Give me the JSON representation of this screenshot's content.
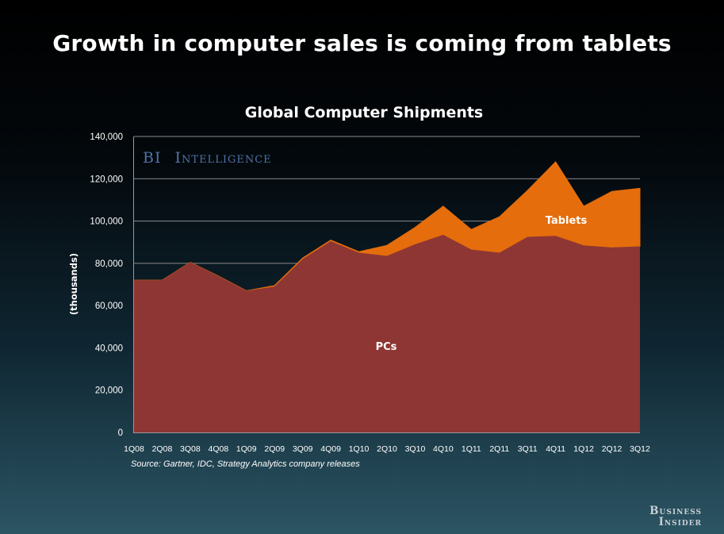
{
  "slide": {
    "title": "Growth in computer sales is coming from tablets",
    "watermark_bi": "BI",
    "watermark_rest": "Intelligence",
    "brand_line1": "Business",
    "brand_line2": "Insider"
  },
  "colors": {
    "pcs": "#8e3634",
    "tablets": "#e56d0c",
    "gridline": "#8a8a8a",
    "watermark": "#4f74a6"
  },
  "chart_data": {
    "type": "area",
    "stacked": true,
    "title": "Global Computer Shipments",
    "ylabel": "(thousands)",
    "xlabel": "",
    "ylim": [
      0,
      140000
    ],
    "yticks": [
      0,
      20000,
      40000,
      60000,
      80000,
      100000,
      120000,
      140000
    ],
    "ytick_labels": [
      "0",
      "20,000",
      "40,000",
      "60,000",
      "80,000",
      "100,000",
      "120,000",
      "140,000"
    ],
    "grid": true,
    "categories": [
      "1Q08",
      "2Q08",
      "3Q08",
      "4Q08",
      "1Q09",
      "2Q09",
      "3Q09",
      "4Q09",
      "1Q10",
      "2Q10",
      "3Q10",
      "4Q10",
      "1Q11",
      "2Q11",
      "3Q11",
      "4Q11",
      "1Q12",
      "2Q12",
      "3Q12"
    ],
    "series": [
      {
        "name": "PCs",
        "values": [
          72000,
          72000,
          80500,
          74000,
          67000,
          69000,
          82000,
          90500,
          85000,
          83500,
          89000,
          93500,
          86500,
          85000,
          92500,
          93000,
          88500,
          87500,
          88000
        ]
      },
      {
        "name": "Tablets",
        "values": [
          0,
          0,
          0,
          0,
          0,
          500,
          500,
          500,
          500,
          5000,
          8000,
          13500,
          9500,
          17000,
          22000,
          35000,
          18500,
          26500,
          27500
        ]
      }
    ],
    "source": "Source: Gartner, IDC, Strategy Analytics company releases"
  }
}
